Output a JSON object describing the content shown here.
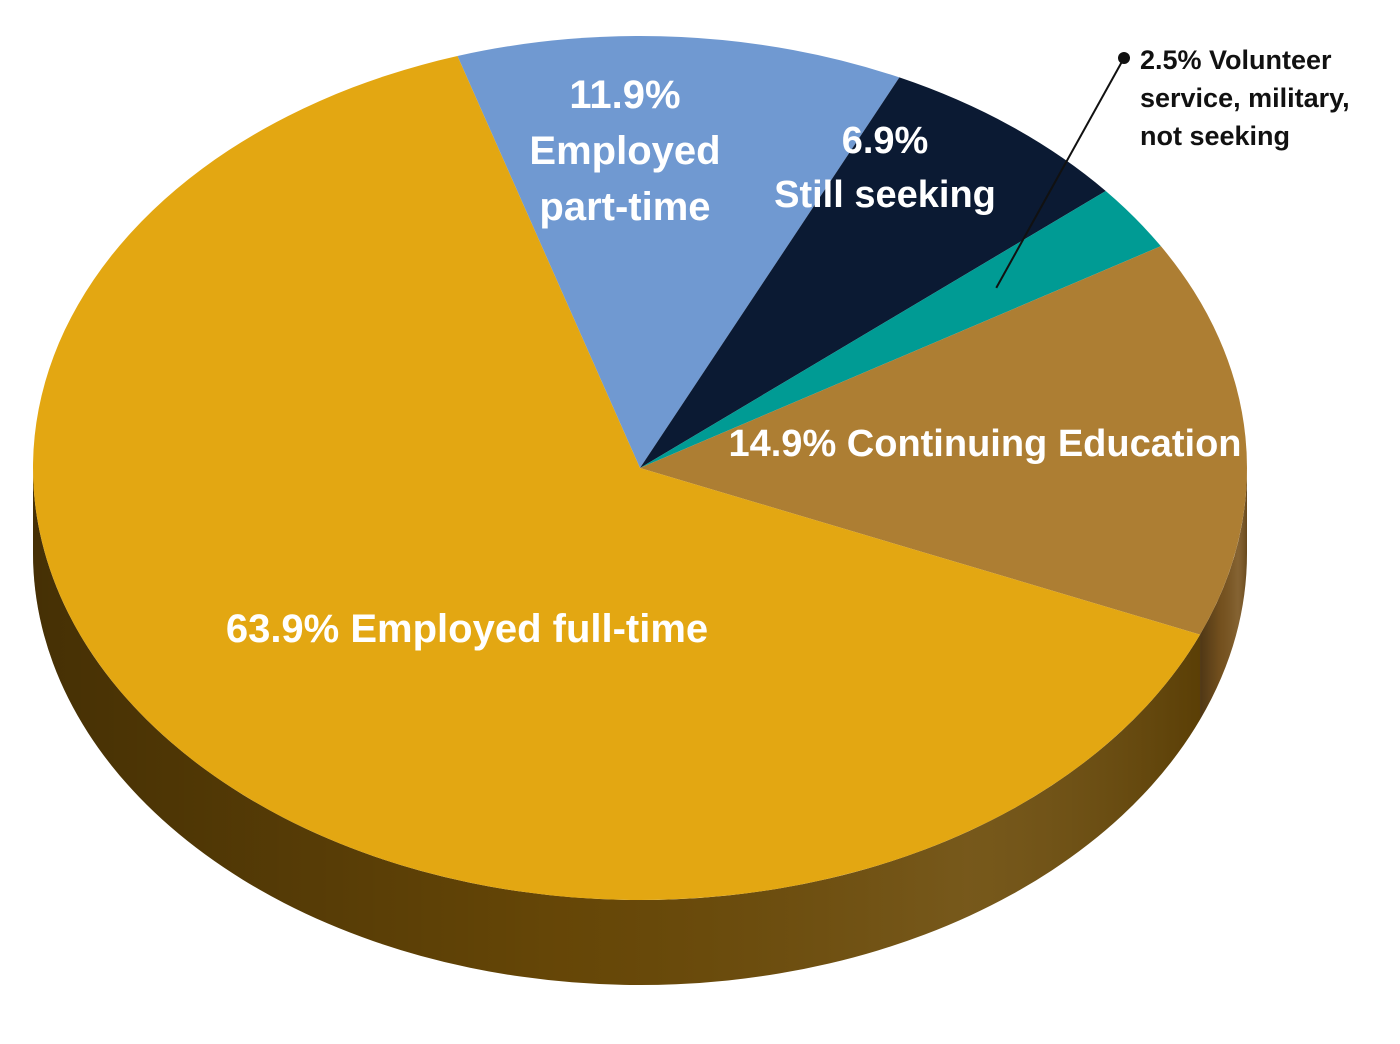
{
  "chart_data": {
    "type": "pie",
    "title": "",
    "slices": [
      {
        "name": "Employed part-time",
        "value": 11.9,
        "label_lines": [
          "11.9%",
          "Employed",
          "part-time"
        ],
        "color": "#7099D1",
        "side_color": "#4E6E9A"
      },
      {
        "name": "Still seeking",
        "value": 6.9,
        "label_lines": [
          "6.9%",
          "Still seeking"
        ],
        "color": "#0B1A33",
        "side_color": "#060F1E"
      },
      {
        "name": "Volunteer service, military, not seeking",
        "value": 2.5,
        "label_lines": [
          "2.5% Volunteer",
          "service, military,",
          "not seeking"
        ],
        "color": "#009B94",
        "side_color": "#006B66"
      },
      {
        "name": "Continuing Education",
        "value": 14.9,
        "label_lines": [
          "14.9% Continuing Education"
        ],
        "color": "#AD7E33",
        "side_color": "#7A5520"
      },
      {
        "name": "Employed full-time",
        "value": 63.9,
        "label_lines": [
          "63.9% Employed full-time"
        ],
        "color": "#E3A712",
        "side_color": "#6B4A07"
      }
    ]
  }
}
